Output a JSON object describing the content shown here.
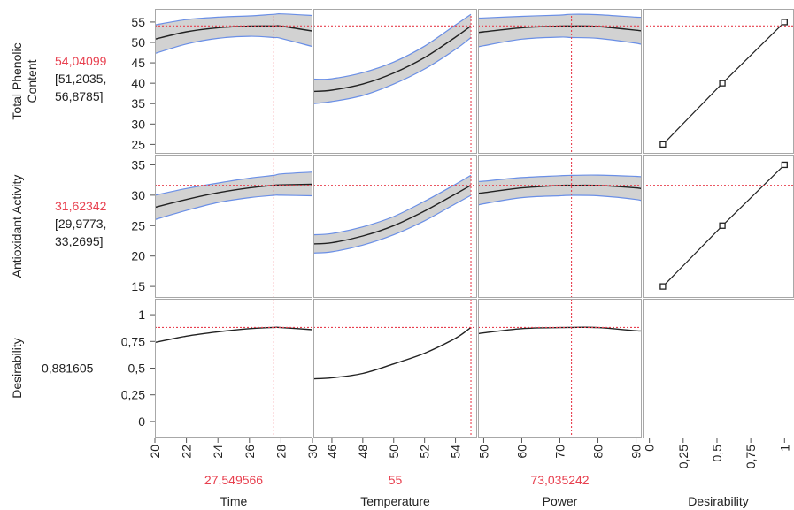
{
  "colors": {
    "current_value": "#e8404f",
    "crosshair": "#e8404f",
    "confidence_band_fill": "#d2d2d2",
    "confidence_band_edge": "#6a8fe6",
    "curve": "#222222",
    "cell_border": "#a8a8a8",
    "text": "#222222"
  },
  "chart_data": {
    "type": "line",
    "chart_kind": "prediction profiler",
    "factors": [
      {
        "name": "Time",
        "current_value": "27,549566",
        "ticks": [
          "20",
          "22",
          "24",
          "26",
          "28",
          "30"
        ],
        "tick_values": [
          20,
          22,
          24,
          26,
          28,
          30
        ],
        "xlim": [
          20,
          30
        ],
        "current_x": 27.55
      },
      {
        "name": "Temperature",
        "current_value": "55",
        "ticks": [
          "46",
          "48",
          "50",
          "52",
          "54"
        ],
        "tick_values": [
          46,
          48,
          50,
          52,
          54
        ],
        "xlim": [
          44.8,
          55.4
        ],
        "current_x": 55
      },
      {
        "name": "Power",
        "current_value": "73,035242",
        "ticks": [
          "50",
          "60",
          "70",
          "80",
          "90"
        ],
        "tick_values": [
          50,
          60,
          70,
          80,
          90
        ],
        "xlim": [
          48.5,
          91.5
        ],
        "current_x": 73.04
      },
      {
        "name": "Desirability",
        "ticks": [
          "0",
          "0,25",
          "0,5",
          "0,75",
          "1"
        ],
        "tick_values": [
          0,
          0.25,
          0.5,
          0.75,
          1
        ],
        "xlim": [
          -0.05,
          1.07
        ]
      }
    ],
    "responses": [
      {
        "name_lines": [
          "Total Phenolic",
          "Content"
        ],
        "predicted": "54,04099",
        "ci_lines": [
          "[51,2035,",
          "56,8785]"
        ],
        "current_y": 54.04,
        "ylim": [
          24,
          56.5
        ],
        "ticks": [
          "25",
          "30",
          "35",
          "40",
          "45",
          "50",
          "55"
        ],
        "tick_values": [
          25,
          30,
          35,
          40,
          45,
          50,
          55
        ],
        "profiles": [
          {
            "x": [
              20,
              22,
              24,
              26,
              27.55,
              28,
              30
            ],
            "y": [
              50.8,
              52.6,
              53.6,
              54.0,
              54.04,
              54.0,
              52.8
            ],
            "lower": [
              47.3,
              49.6,
              51.0,
              51.5,
              51.2,
              51.0,
              49.0
            ],
            "upper": [
              54.3,
              55.6,
              56.2,
              56.5,
              56.9,
              57.0,
              56.6
            ]
          },
          {
            "x": [
              44.8,
              46,
              48,
              50,
              52,
              54,
              55
            ],
            "y": [
              38.0,
              38.3,
              39.8,
              42.5,
              46.3,
              51.3,
              54.04
            ],
            "lower": [
              35.0,
              35.5,
              37.0,
              39.8,
              43.5,
              48.3,
              51.2
            ],
            "upper": [
              41.0,
              41.1,
              42.6,
              45.2,
              49.1,
              54.3,
              56.9
            ]
          },
          {
            "x": [
              48.5,
              50,
              60,
              70,
              73.04,
              80,
              90,
              91.5
            ],
            "y": [
              52.4,
              52.6,
              53.6,
              54.0,
              54.04,
              53.9,
              53.0,
              52.8
            ],
            "lower": [
              48.8,
              49.2,
              50.8,
              51.3,
              51.2,
              51.0,
              49.8,
              49.4
            ],
            "upper": [
              56.0,
              56.0,
              56.4,
              56.7,
              56.9,
              56.8,
              56.2,
              56.2
            ]
          }
        ],
        "desirability_points": [
          {
            "d": 0.1,
            "y": 25
          },
          {
            "d": 0.54,
            "y": 40
          },
          {
            "d": 1.0,
            "y": 55
          }
        ]
      },
      {
        "name_lines": [
          "Antioxidant Activity"
        ],
        "predicted": "31,62342",
        "ci_lines": [
          "[29,9773,",
          "33,2695]"
        ],
        "current_y": 31.62,
        "ylim": [
          14,
          35.5
        ],
        "ticks": [
          "15",
          "20",
          "25",
          "30",
          "35"
        ],
        "tick_values": [
          15,
          20,
          25,
          30,
          35
        ],
        "profiles": [
          {
            "x": [
              20,
              22,
              24,
              26,
              27.55,
              28,
              30
            ],
            "y": [
              28.0,
              29.3,
              30.4,
              31.2,
              31.62,
              31.7,
              31.8
            ],
            "lower": [
              26.0,
              27.5,
              28.8,
              29.6,
              29.98,
              30.0,
              29.9
            ],
            "upper": [
              30.0,
              31.1,
              32.0,
              32.8,
              33.27,
              33.5,
              33.8
            ]
          },
          {
            "x": [
              44.8,
              46,
              48,
              50,
              52,
              54,
              55
            ],
            "y": [
              22.0,
              22.2,
              23.3,
              25.0,
              27.4,
              30.2,
              31.62
            ],
            "lower": [
              20.5,
              20.7,
              21.8,
              23.5,
              25.8,
              28.6,
              29.98
            ],
            "upper": [
              23.5,
              23.7,
              24.8,
              26.5,
              29.0,
              31.8,
              33.27
            ]
          },
          {
            "x": [
              48.5,
              50,
              60,
              70,
              73.04,
              80,
              90,
              91.5
            ],
            "y": [
              30.3,
              30.4,
              31.2,
              31.6,
              31.62,
              31.6,
              31.2,
              31.0
            ],
            "lower": [
              28.3,
              28.6,
              29.6,
              29.9,
              29.98,
              29.9,
              29.3,
              29.0
            ],
            "upper": [
              32.3,
              32.3,
              32.9,
              33.2,
              33.27,
              33.3,
              33.1,
              33.0
            ]
          }
        ],
        "desirability_points": [
          {
            "d": 0.1,
            "y": 15
          },
          {
            "d": 0.54,
            "y": 25
          },
          {
            "d": 1.0,
            "y": 35
          }
        ]
      },
      {
        "name_lines": [
          "Desirability"
        ],
        "predicted": "0,881605",
        "current_y": 0.8816,
        "ylim": [
          -0.1,
          1.1
        ],
        "ticks": [
          "0",
          "0,25",
          "0,5",
          "0,75",
          "1"
        ],
        "tick_values": [
          0,
          0.25,
          0.5,
          0.75,
          1
        ],
        "profiles": [
          {
            "x": [
              20,
              22,
              24,
              26,
              27.55,
              28,
              30
            ],
            "y": [
              0.74,
              0.8,
              0.84,
              0.87,
              0.8816,
              0.88,
              0.86
            ]
          },
          {
            "x": [
              44.8,
              46,
              48,
              50,
              52,
              54,
              55
            ],
            "y": [
              0.4,
              0.41,
              0.45,
              0.54,
              0.64,
              0.78,
              0.8816
            ]
          },
          {
            "x": [
              48.5,
              50,
              60,
              70,
              73.04,
              80,
              90,
              91.5
            ],
            "y": [
              0.82,
              0.83,
              0.87,
              0.88,
              0.8816,
              0.88,
              0.85,
              0.85
            ]
          }
        ]
      }
    ]
  }
}
